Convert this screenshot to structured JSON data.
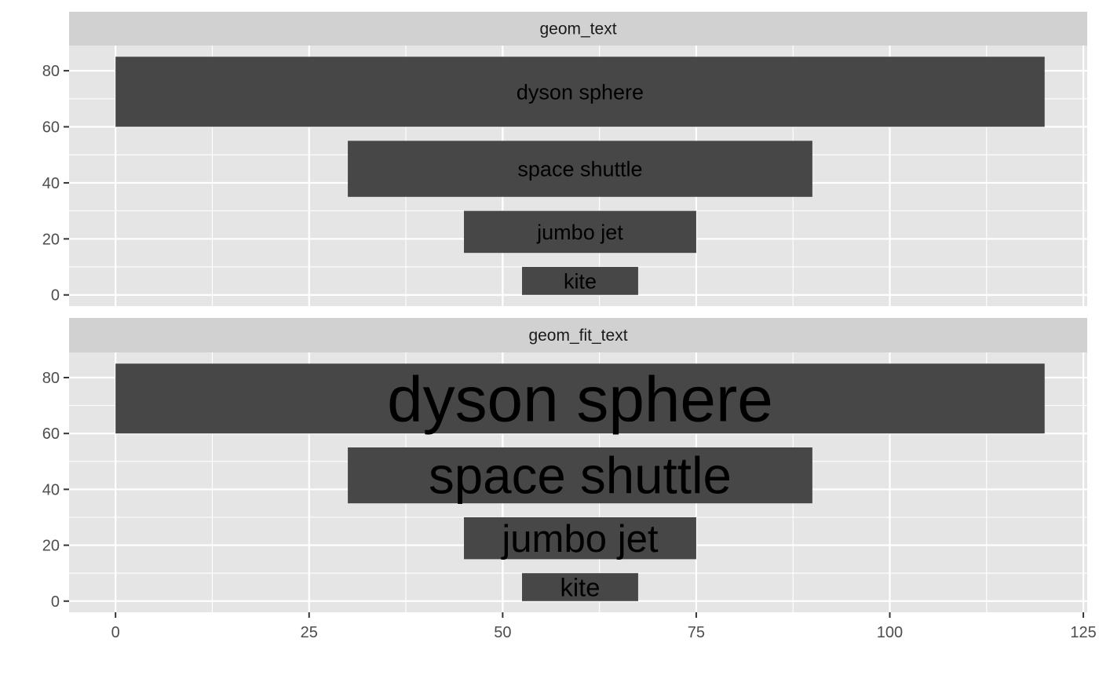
{
  "chart_data": {
    "type": "bar",
    "layout": "faceted, two panels stacked vertically, shared x axis",
    "background_color": "#E5E5E5",
    "strip_color": "#D1D1D1",
    "bar_color": "#474747",
    "label_color": "#000000",
    "gridlines": true,
    "xlim": [
      -6,
      125.5
    ],
    "ylim": [
      -4,
      89
    ],
    "x_ticks": [
      0,
      25,
      50,
      75,
      100,
      125
    ],
    "y_ticks": [
      0,
      20,
      40,
      60,
      80
    ],
    "facets": [
      {
        "name": "geom_text",
        "label_scaling": "fixed",
        "bars": [
          {
            "label": "dyson sphere",
            "xmin": 0,
            "xmax": 120,
            "ymin": 60,
            "ymax": 85
          },
          {
            "label": "space shuttle",
            "xmin": 30,
            "xmax": 90,
            "ymin": 35,
            "ymax": 55
          },
          {
            "label": "jumbo jet",
            "xmin": 45,
            "xmax": 75,
            "ymin": 15,
            "ymax": 30
          },
          {
            "label": "kite",
            "xmin": 52.5,
            "xmax": 67.5,
            "ymin": 0,
            "ymax": 10
          }
        ]
      },
      {
        "name": "geom_fit_text",
        "label_scaling": "grow to fit bar",
        "bars": [
          {
            "label": "dyson sphere",
            "xmin": 0,
            "xmax": 120,
            "ymin": 60,
            "ymax": 85
          },
          {
            "label": "space shuttle",
            "xmin": 30,
            "xmax": 90,
            "ymin": 35,
            "ymax": 55
          },
          {
            "label": "jumbo jet",
            "xmin": 45,
            "xmax": 75,
            "ymin": 15,
            "ymax": 30
          },
          {
            "label": "kite",
            "xmin": 52.5,
            "xmax": 67.5,
            "ymin": 0,
            "ymax": 10
          }
        ]
      }
    ]
  }
}
